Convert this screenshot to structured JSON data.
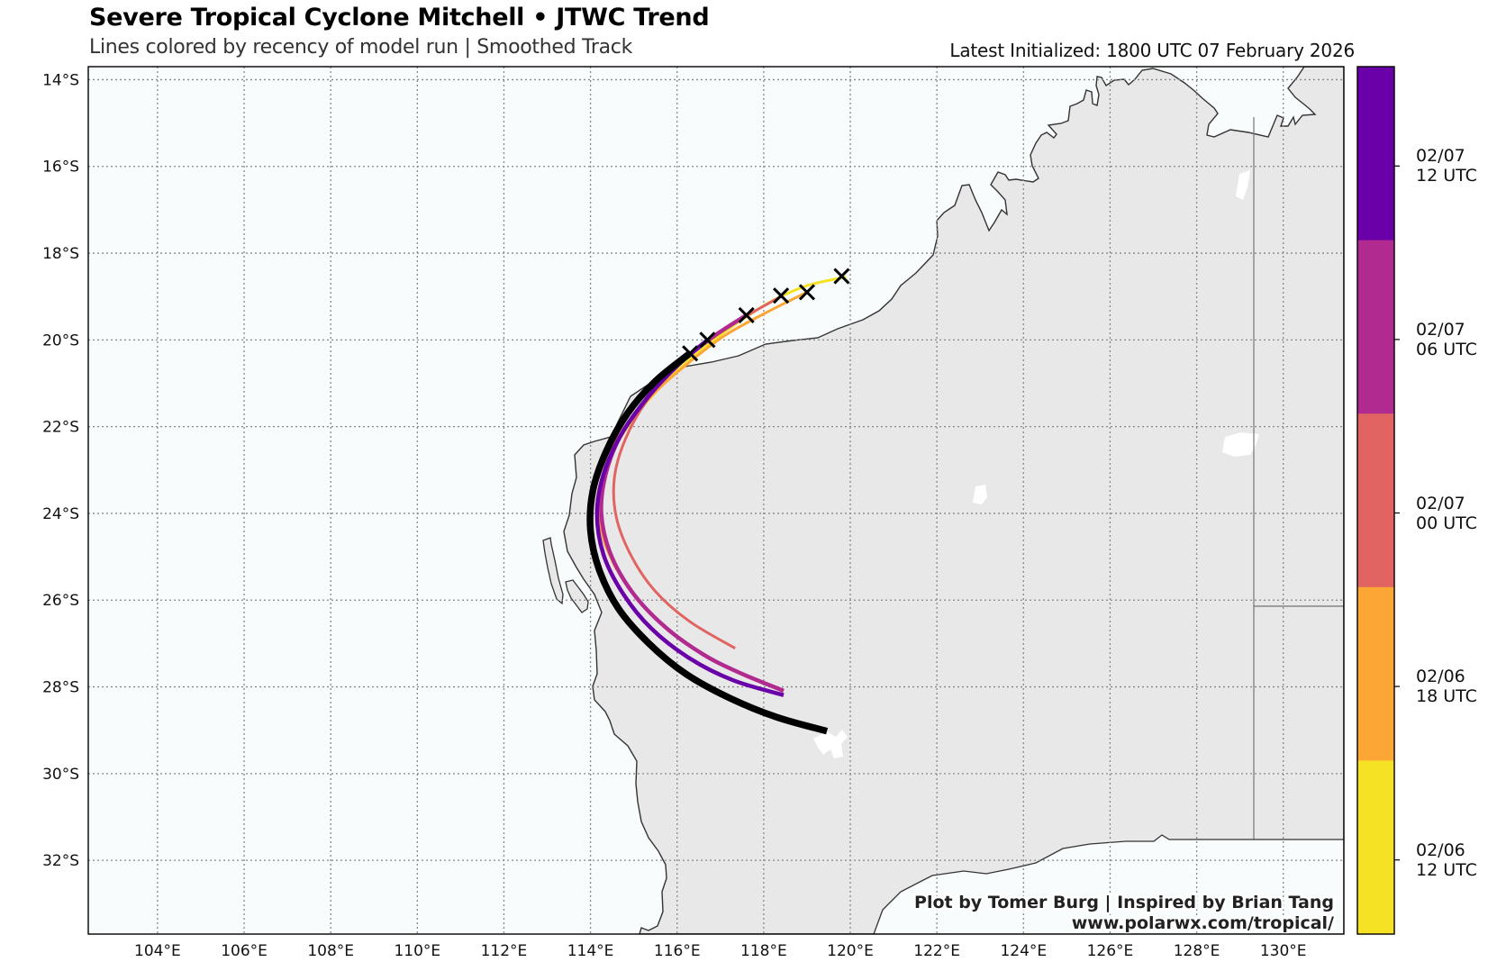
{
  "header": {
    "title": "Severe Tropical Cyclone Mitchell • JTWC Trend",
    "subtitle": "Lines colored by recency of model run | Smoothed Track",
    "latest_initialized": "Latest Initialized: 1800 UTC 07 February 2026"
  },
  "credits": {
    "line1": "Plot by Tomer Burg | Inspired by Brian Tang",
    "line2": "www.polarwx.com/tropical/"
  },
  "colors": {
    "ocean": "#f8fcfd",
    "land": "#e8e8e8",
    "coast": "#333333",
    "grid": "#888888",
    "latest_track": "#000000"
  },
  "colorbar": {
    "segments": [
      {
        "label": "02/07\n12 UTC",
        "line1": "02/07",
        "line2": "12 UTC",
        "color": "#6a00a8"
      },
      {
        "label": "02/07\n06 UTC",
        "line1": "02/07",
        "line2": "06 UTC",
        "color": "#b12a90"
      },
      {
        "label": "02/07\n00 UTC",
        "line1": "02/07",
        "line2": "00 UTC",
        "color": "#e16462"
      },
      {
        "label": "02/06\n18 UTC",
        "line1": "02/06",
        "line2": "18 UTC",
        "color": "#fca636"
      },
      {
        "label": "02/06\n12 UTC",
        "line1": "02/06",
        "line2": "12 UTC",
        "color": "#f5e224"
      }
    ]
  },
  "chart_data": {
    "type": "line",
    "title": "Severe Tropical Cyclone Mitchell • JTWC Trend",
    "subtitle": "Lines colored by recency of model run | Smoothed Track",
    "xlabel": "Longitude",
    "ylabel": "Latitude",
    "xlim": [
      102.4,
      131.4
    ],
    "ylim": [
      -33.7,
      -13.7
    ],
    "x_ticks": [
      "104°E",
      "106°E",
      "108°E",
      "110°E",
      "112°E",
      "114°E",
      "116°E",
      "118°E",
      "120°E",
      "122°E",
      "124°E",
      "126°E",
      "128°E",
      "130°E"
    ],
    "x_tick_values": [
      104,
      106,
      108,
      110,
      112,
      114,
      116,
      118,
      120,
      122,
      124,
      126,
      128,
      130
    ],
    "y_ticks": [
      "14°S",
      "16°S",
      "18°S",
      "20°S",
      "22°S",
      "24°S",
      "26°S",
      "28°S",
      "30°S",
      "32°S"
    ],
    "y_tick_values": [
      -14,
      -16,
      -18,
      -20,
      -22,
      -24,
      -26,
      -28,
      -30,
      -32
    ],
    "grid": true,
    "legend": "colorbar-right",
    "series": [
      {
        "name": "02/06 12 UTC",
        "color": "#f5e224",
        "lon": [
          119.9,
          119.0,
          118.2,
          117.4,
          116.6,
          115.8,
          115.0,
          114.4,
          114.15,
          114.2,
          114.5
        ],
        "lat": [
          -18.55,
          -18.75,
          -19.1,
          -19.6,
          -20.2,
          -20.9,
          -21.8,
          -22.8,
          -23.7,
          -24.6,
          -25.4
        ]
      },
      {
        "name": "02/06 18 UTC",
        "color": "#fca636",
        "lon": [
          119.0,
          118.0,
          117.1,
          116.3,
          115.5,
          114.8,
          114.35,
          114.2,
          114.3,
          114.6
        ],
        "lat": [
          -18.9,
          -19.4,
          -19.9,
          -20.5,
          -21.2,
          -22.0,
          -22.9,
          -23.8,
          -24.6,
          -25.3
        ]
      },
      {
        "name": "02/07 00 UTC",
        "color": "#e16462",
        "lon": [
          118.4,
          117.6,
          116.8,
          116.0,
          115.3,
          114.8,
          114.55,
          114.6,
          114.95,
          115.5,
          116.3,
          117.34
        ],
        "lat": [
          -19.0,
          -19.45,
          -19.95,
          -20.6,
          -21.4,
          -22.3,
          -23.2,
          -24.1,
          -25.0,
          -25.8,
          -26.5,
          -27.11
        ]
      },
      {
        "name": "02/07 06 UTC",
        "color": "#b12a90",
        "lon": [
          117.6,
          116.8,
          116.0,
          115.3,
          114.7,
          114.35,
          114.25,
          114.45,
          114.95,
          115.7,
          116.6,
          117.5,
          118.46
        ],
        "lat": [
          -19.43,
          -19.95,
          -20.6,
          -21.35,
          -22.2,
          -23.1,
          -24.0,
          -24.9,
          -25.8,
          -26.6,
          -27.25,
          -27.7,
          -28.09
        ]
      },
      {
        "name": "02/07 12 UTC",
        "color": "#6a00a8",
        "lon": [
          116.7,
          116.0,
          115.3,
          114.7,
          114.3,
          114.15,
          114.3,
          114.75,
          115.4,
          116.3,
          117.3,
          118.46
        ],
        "lat": [
          -20.0,
          -20.6,
          -21.35,
          -22.2,
          -23.1,
          -24.0,
          -24.95,
          -25.85,
          -26.65,
          -27.35,
          -27.85,
          -28.19
        ]
      },
      {
        "name": "02/07 18 UTC (latest)",
        "color": "#000000",
        "lon": [
          116.27,
          115.5,
          114.85,
          114.35,
          114.05,
          114.0,
          114.2,
          114.65,
          115.35,
          116.2,
          117.2,
          118.3,
          119.46
        ],
        "lat": [
          -20.33,
          -20.95,
          -21.7,
          -22.6,
          -23.5,
          -24.4,
          -25.3,
          -26.2,
          -27.0,
          -27.7,
          -28.25,
          -28.7,
          -29.02
        ]
      }
    ],
    "initial_positions": [
      {
        "run": "02/06 12 UTC",
        "lon": 119.8,
        "lat": -18.53
      },
      {
        "run": "02/06 18 UTC",
        "lon": 119.0,
        "lat": -18.9
      },
      {
        "run": "02/07 00 UTC",
        "lon": 118.4,
        "lat": -18.98
      },
      {
        "run": "02/07 06 UTC",
        "lon": 117.6,
        "lat": -19.43
      },
      {
        "run": "02/07 12 UTC",
        "lon": 116.7,
        "lat": -20.0
      },
      {
        "run": "02/07 18 UTC",
        "lon": 116.3,
        "lat": -20.31
      }
    ]
  }
}
